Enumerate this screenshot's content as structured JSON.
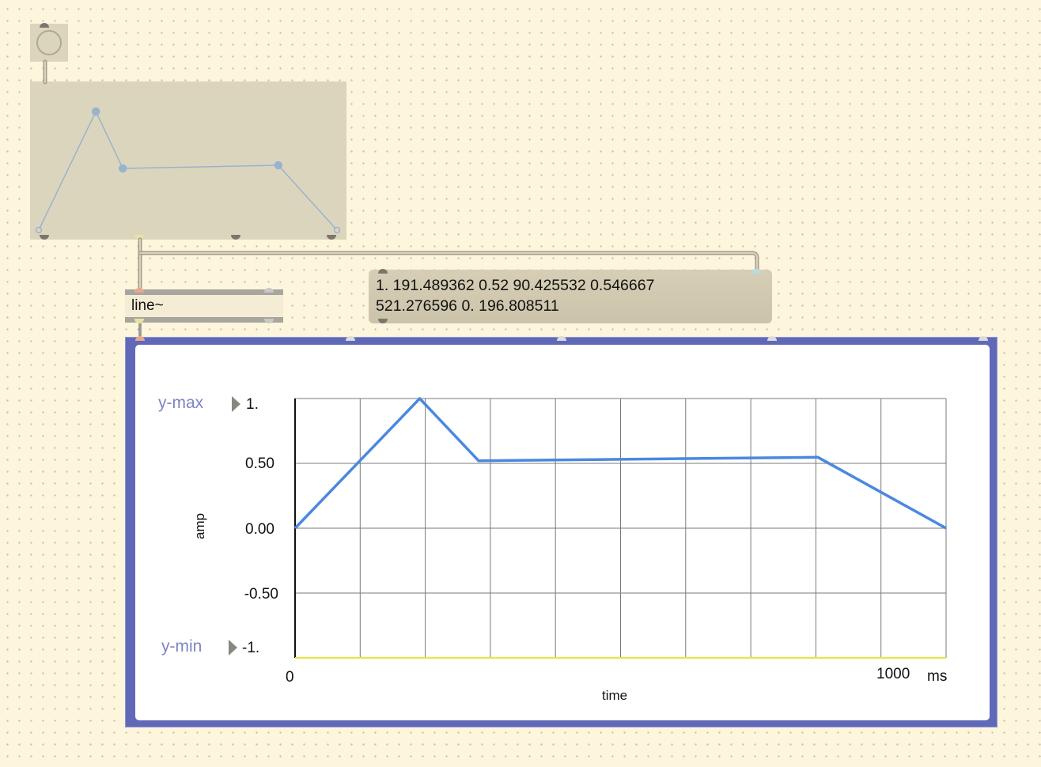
{
  "objects": {
    "button": {
      "icon": "button-ring-icon"
    },
    "function": {
      "points": [
        {
          "x": 0.0,
          "y": 0.0
        },
        {
          "x": 0.191489,
          "y": 1.0
        },
        {
          "x": 0.281915,
          "y": 0.52
        },
        {
          "x": 0.803191,
          "y": 0.546667
        },
        {
          "x": 1.0,
          "y": 0.0
        }
      ]
    },
    "line": {
      "label": "line~"
    },
    "message": {
      "line1": "1. 191.489362 0.52 90.425532 0.546667",
      "line2": "521.276596 0. 196.808511"
    },
    "plot": {
      "ymax_label": "y-max",
      "ymax_value": "1.",
      "ymin_label": "y-min",
      "ymin_value": "-1.",
      "y_ticks": [
        "0.50",
        "0.00",
        "-0.50"
      ],
      "y_axis_title": "amp",
      "x_start": "0",
      "x_end": "1000",
      "x_unit": "ms",
      "x_axis_title": "time"
    }
  },
  "chart_data": {
    "type": "line",
    "title": "",
    "xlabel": "time",
    "ylabel": "amp",
    "xlim": [
      0,
      1000
    ],
    "ylim": [
      -1,
      1
    ],
    "grid": true,
    "series": [
      {
        "x": [
          0,
          191.489362,
          281.914894,
          803.19149,
          1000
        ],
        "y": [
          0,
          1.0,
          0.52,
          0.546667,
          0
        ],
        "color": "#4a88e0"
      }
    ]
  },
  "colors": {
    "canvas": "#fdf5dc",
    "object": "#dcd5be",
    "plot_frame": "#6068b8",
    "curve": "#4a88e0",
    "function_curve": "#98b4cc"
  }
}
